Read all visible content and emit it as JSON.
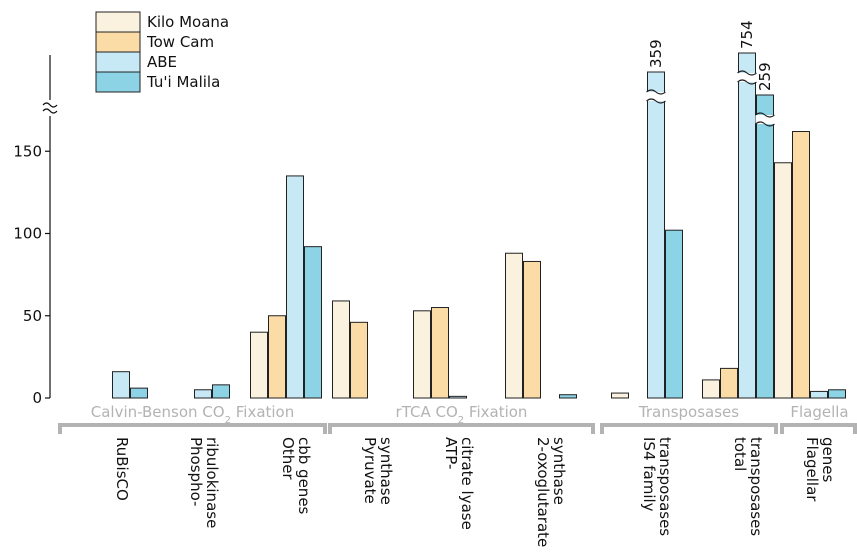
{
  "chart_data": {
    "type": "bar",
    "title": "",
    "xlabel": "",
    "ylabel": "",
    "ylim": [
      0,
      200
    ],
    "yticks": [
      0,
      50,
      100,
      150
    ],
    "axis_break": true,
    "grid": false,
    "legend_position": "top-left",
    "series": [
      {
        "name": "Kilo Moana",
        "color": "#fbf1df",
        "values": [
          0,
          0,
          40,
          59,
          53,
          88,
          3,
          11,
          143
        ]
      },
      {
        "name": "Tow Cam",
        "color": "#fbdca6",
        "values": [
          0,
          0,
          50,
          46,
          55,
          83,
          0,
          18,
          162
        ]
      },
      {
        "name": "ABE",
        "color": "#c6e9f5",
        "values": [
          16,
          5,
          135,
          0,
          1,
          0,
          359,
          754,
          4
        ]
      },
      {
        "name": "Tu'i Malila",
        "color": "#8dd3e6",
        "values": [
          6,
          8,
          92,
          0,
          0,
          2,
          102,
          259,
          5
        ]
      }
    ],
    "categories": [
      {
        "label": [
          "RuBisCO"
        ]
      },
      {
        "label": [
          "Phospho-",
          "ribulokinase"
        ]
      },
      {
        "label": [
          "Other",
          "cbb genes"
        ]
      },
      {
        "label": [
          "Pyruvate",
          "synthase"
        ]
      },
      {
        "label": [
          "ATP-",
          "citrate lyase"
        ]
      },
      {
        "label": [
          "2-oxoglutarate",
          "synthase"
        ]
      },
      {
        "label": [
          "IS4 family",
          "transposases"
        ]
      },
      {
        "label": [
          "total",
          "transposases"
        ]
      },
      {
        "label": [
          "Flagellar",
          "genes"
        ]
      }
    ],
    "groups": [
      {
        "label": "Calvin-Benson CO",
        "sub": "2",
        "suffix": " Fixation",
        "categories": [
          0,
          1,
          2
        ]
      },
      {
        "label": "rTCA CO",
        "sub": "2",
        "suffix": " Fixation",
        "categories": [
          3,
          4,
          5
        ]
      },
      {
        "label": "Transposases",
        "sub": "",
        "suffix": "",
        "categories": [
          6,
          7
        ]
      },
      {
        "label": "Flagella",
        "sub": "",
        "suffix": "",
        "categories": [
          8
        ]
      }
    ],
    "broken_values": [
      {
        "category": 6,
        "series": 2,
        "label": "359"
      },
      {
        "category": 7,
        "series": 2,
        "label": "754"
      },
      {
        "category": 7,
        "series": 3,
        "label": "259"
      }
    ]
  }
}
